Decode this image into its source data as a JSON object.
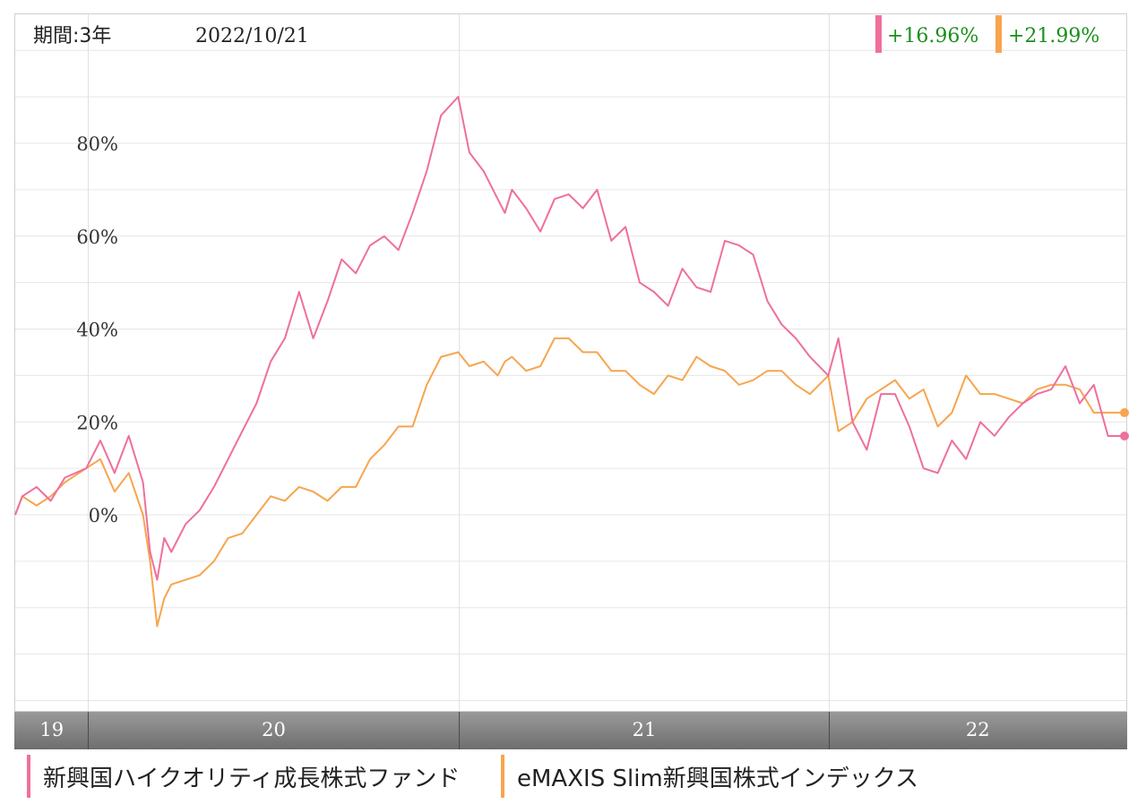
{
  "header": {
    "period_label": "期間:3年",
    "date": "2022/10/21",
    "returns": [
      "+16.96%",
      "+21.99%"
    ]
  },
  "colors": {
    "series_a": "#ef6f9c",
    "series_b": "#f7a54e",
    "return_text": "#1a8f1a"
  },
  "chart_data": {
    "type": "line",
    "title": "",
    "xlabel": "",
    "ylabel": "",
    "ylim": [
      -43,
      108
    ],
    "y_ticks": [
      0,
      20,
      40,
      60,
      80
    ],
    "y_tick_labels": [
      "0%",
      "20%",
      "40%",
      "60%",
      "80%"
    ],
    "x_range": [
      "2019-10-21",
      "2022-10-21"
    ],
    "x_bands": [
      {
        "label": "19",
        "start": "2019-10-21",
        "end": "2020-01-01"
      },
      {
        "label": "20",
        "start": "2020-01-01",
        "end": "2021-01-01"
      },
      {
        "label": "21",
        "start": "2021-01-01",
        "end": "2022-01-01"
      },
      {
        "label": "22",
        "start": "2022-01-01",
        "end": "2022-10-21"
      }
    ],
    "series": [
      {
        "name": "新興国ハイクオリティ成長株式ファンド",
        "color": "#ef6f9c",
        "x": [
          "2019-10-21",
          "2019-10-28",
          "2019-11-11",
          "2019-11-25",
          "2019-12-09",
          "2019-12-30",
          "2020-01-13",
          "2020-01-27",
          "2020-02-10",
          "2020-02-24",
          "2020-03-02",
          "2020-03-09",
          "2020-03-16",
          "2020-03-23",
          "2020-04-06",
          "2020-04-20",
          "2020-05-04",
          "2020-05-18",
          "2020-06-01",
          "2020-06-15",
          "2020-06-29",
          "2020-07-13",
          "2020-07-27",
          "2020-08-10",
          "2020-08-24",
          "2020-09-07",
          "2020-09-21",
          "2020-10-05",
          "2020-10-19",
          "2020-11-02",
          "2020-11-16",
          "2020-11-30",
          "2020-12-14",
          "2020-12-31",
          "2021-01-11",
          "2021-01-25",
          "2021-02-08",
          "2021-02-15",
          "2021-02-22",
          "2021-03-08",
          "2021-03-22",
          "2021-04-05",
          "2021-04-19",
          "2021-05-03",
          "2021-05-17",
          "2021-05-31",
          "2021-06-14",
          "2021-06-28",
          "2021-07-12",
          "2021-07-26",
          "2021-08-09",
          "2021-08-23",
          "2021-09-06",
          "2021-09-20",
          "2021-10-04",
          "2021-10-18",
          "2021-11-01",
          "2021-11-15",
          "2021-11-29",
          "2021-12-13",
          "2021-12-31",
          "2022-01-10",
          "2022-01-24",
          "2022-02-07",
          "2022-02-21",
          "2022-03-07",
          "2022-03-21",
          "2022-04-04",
          "2022-04-18",
          "2022-05-02",
          "2022-05-16",
          "2022-05-30",
          "2022-06-13",
          "2022-06-27",
          "2022-07-11",
          "2022-07-25",
          "2022-08-08",
          "2022-08-22",
          "2022-09-05",
          "2022-09-19",
          "2022-10-03",
          "2022-10-21"
        ],
        "values": [
          0,
          4,
          6,
          3,
          8,
          10,
          16,
          9,
          17,
          7,
          -8,
          -14,
          -5,
          -8,
          -2,
          1,
          6,
          12,
          18,
          24,
          33,
          38,
          48,
          38,
          46,
          55,
          52,
          58,
          60,
          57,
          65,
          74,
          86,
          90,
          78,
          74,
          68,
          65,
          70,
          66,
          61,
          68,
          69,
          66,
          70,
          59,
          62,
          50,
          48,
          45,
          53,
          49,
          48,
          59,
          58,
          56,
          46,
          41,
          38,
          34,
          30,
          38,
          20,
          14,
          26,
          26,
          19,
          10,
          9,
          16,
          12,
          20,
          17,
          21,
          24,
          26,
          27,
          32,
          24,
          28,
          16.96,
          16.96
        ]
      },
      {
        "name": "eMAXIS Slim新興国株式インデックス",
        "color": "#f7a54e",
        "x": [
          "2019-10-21",
          "2019-10-28",
          "2019-11-11",
          "2019-11-25",
          "2019-12-09",
          "2019-12-30",
          "2020-01-13",
          "2020-01-27",
          "2020-02-10",
          "2020-02-24",
          "2020-03-02",
          "2020-03-09",
          "2020-03-16",
          "2020-03-23",
          "2020-04-06",
          "2020-04-20",
          "2020-05-04",
          "2020-05-18",
          "2020-06-01",
          "2020-06-15",
          "2020-06-29",
          "2020-07-13",
          "2020-07-27",
          "2020-08-10",
          "2020-08-24",
          "2020-09-07",
          "2020-09-21",
          "2020-10-05",
          "2020-10-19",
          "2020-11-02",
          "2020-11-16",
          "2020-11-30",
          "2020-12-14",
          "2020-12-31",
          "2021-01-11",
          "2021-01-25",
          "2021-02-08",
          "2021-02-15",
          "2021-02-22",
          "2021-03-08",
          "2021-03-22",
          "2021-04-05",
          "2021-04-19",
          "2021-05-03",
          "2021-05-17",
          "2021-05-31",
          "2021-06-14",
          "2021-06-28",
          "2021-07-12",
          "2021-07-26",
          "2021-08-09",
          "2021-08-23",
          "2021-09-06",
          "2021-09-20",
          "2021-10-04",
          "2021-10-18",
          "2021-11-01",
          "2021-11-15",
          "2021-11-29",
          "2021-12-13",
          "2021-12-31",
          "2022-01-10",
          "2022-01-24",
          "2022-02-07",
          "2022-02-21",
          "2022-03-07",
          "2022-03-21",
          "2022-04-04",
          "2022-04-18",
          "2022-05-02",
          "2022-05-16",
          "2022-05-30",
          "2022-06-13",
          "2022-06-27",
          "2022-07-11",
          "2022-07-25",
          "2022-08-08",
          "2022-08-22",
          "2022-09-05",
          "2022-09-19",
          "2022-10-03",
          "2022-10-21"
        ],
        "values": [
          0,
          4,
          2,
          4,
          7,
          10,
          12,
          5,
          9,
          0,
          -10,
          -24,
          -18,
          -15,
          -14,
          -13,
          -10,
          -5,
          -4,
          0,
          4,
          3,
          6,
          5,
          3,
          6,
          6,
          12,
          15,
          19,
          19,
          28,
          34,
          35,
          32,
          33,
          30,
          33,
          34,
          31,
          32,
          38,
          38,
          35,
          35,
          31,
          31,
          28,
          26,
          30,
          29,
          34,
          32,
          31,
          28,
          29,
          31,
          31,
          28,
          26,
          30,
          18,
          20,
          25,
          27,
          29,
          25,
          27,
          19,
          22,
          30,
          26,
          26,
          25,
          24,
          27,
          28,
          28,
          27,
          22,
          21.99,
          21.99
        ]
      }
    ],
    "grid": true
  },
  "legend": [
    {
      "label": "新興国ハイクオリティ成長株式ファンド"
    },
    {
      "label": "eMAXIS Slim新興国株式インデックス"
    }
  ]
}
